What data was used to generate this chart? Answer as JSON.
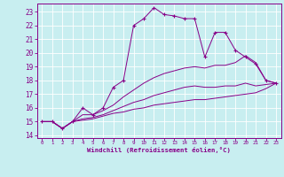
{
  "xlabel": "Windchill (Refroidissement éolien,°C)",
  "bg_color": "#c8eef0",
  "line_color": "#880088",
  "grid_color": "#ffffff",
  "xlim": [
    -0.5,
    23.5
  ],
  "ylim": [
    13.8,
    23.6
  ],
  "yticks": [
    14,
    15,
    16,
    17,
    18,
    19,
    20,
    21,
    22,
    23
  ],
  "xticks": [
    0,
    1,
    2,
    3,
    4,
    5,
    6,
    7,
    8,
    9,
    10,
    11,
    12,
    13,
    14,
    15,
    16,
    17,
    18,
    19,
    20,
    21,
    22,
    23
  ],
  "series": [
    [
      15.0,
      15.0,
      14.5,
      15.0,
      16.0,
      15.5,
      16.0,
      17.5,
      18.0,
      22.0,
      22.5,
      23.3,
      22.8,
      22.7,
      22.5,
      22.5,
      19.7,
      21.5,
      21.5,
      20.2,
      19.7,
      19.2,
      18.0,
      17.8
    ],
    [
      15.0,
      15.0,
      14.5,
      15.0,
      15.5,
      15.5,
      15.8,
      16.2,
      16.8,
      17.3,
      17.8,
      18.2,
      18.5,
      18.7,
      18.9,
      19.0,
      18.9,
      19.1,
      19.1,
      19.3,
      19.8,
      19.3,
      18.0,
      17.8
    ],
    [
      15.0,
      15.0,
      14.5,
      15.0,
      15.2,
      15.3,
      15.5,
      15.8,
      16.1,
      16.4,
      16.6,
      16.9,
      17.1,
      17.3,
      17.5,
      17.6,
      17.5,
      17.5,
      17.6,
      17.6,
      17.8,
      17.6,
      17.7,
      17.8
    ],
    [
      15.0,
      15.0,
      14.5,
      15.0,
      15.1,
      15.2,
      15.4,
      15.6,
      15.7,
      15.9,
      16.0,
      16.2,
      16.3,
      16.4,
      16.5,
      16.6,
      16.6,
      16.7,
      16.8,
      16.9,
      17.0,
      17.1,
      17.4,
      17.8
    ]
  ],
  "markers": [
    true,
    false,
    false,
    false
  ]
}
